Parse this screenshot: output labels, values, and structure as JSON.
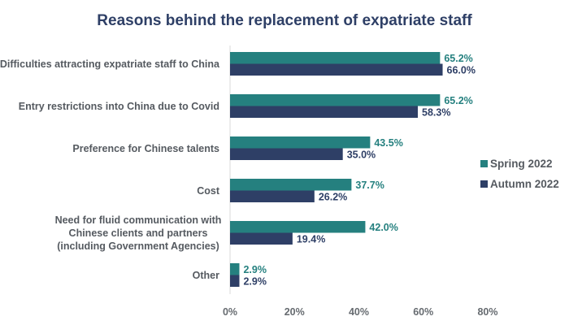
{
  "chart_data": {
    "type": "bar",
    "orientation": "horizontal",
    "title": "Reasons behind the replacement of expatriate staff",
    "xlabel": "",
    "ylabel": "",
    "xlim": [
      0,
      80
    ],
    "ticks": [
      "0%",
      "20%",
      "40%",
      "60%",
      "80%"
    ],
    "tick_values": [
      0,
      20,
      40,
      60,
      80
    ],
    "grid": false,
    "legend_position": "right",
    "categories": [
      [
        "Difficulties attracting expatriate staff to China"
      ],
      [
        "Entry restrictions into China due to Covid"
      ],
      [
        "Preference for Chinese talents"
      ],
      [
        "Cost"
      ],
      [
        "Need for fluid communication with",
        "Chinese clients and partners",
        "(including Government Agencies)"
      ],
      [
        "Other"
      ]
    ],
    "series": [
      {
        "name": "Spring 2022",
        "color": "#25807f",
        "values": [
          65.2,
          65.2,
          43.5,
          37.7,
          42.0,
          2.9
        ],
        "labels": [
          "65.2%",
          "65.2%",
          "43.5%",
          "37.7%",
          "42.0%",
          "2.9%"
        ]
      },
      {
        "name": "Autumn 2022",
        "color": "#2e3f66",
        "values": [
          66.0,
          58.3,
          35.0,
          26.2,
          19.4,
          2.9
        ],
        "labels": [
          "66.0%",
          "58.3%",
          "35.0%",
          "26.2%",
          "19.4%",
          "2.9%"
        ]
      }
    ]
  }
}
